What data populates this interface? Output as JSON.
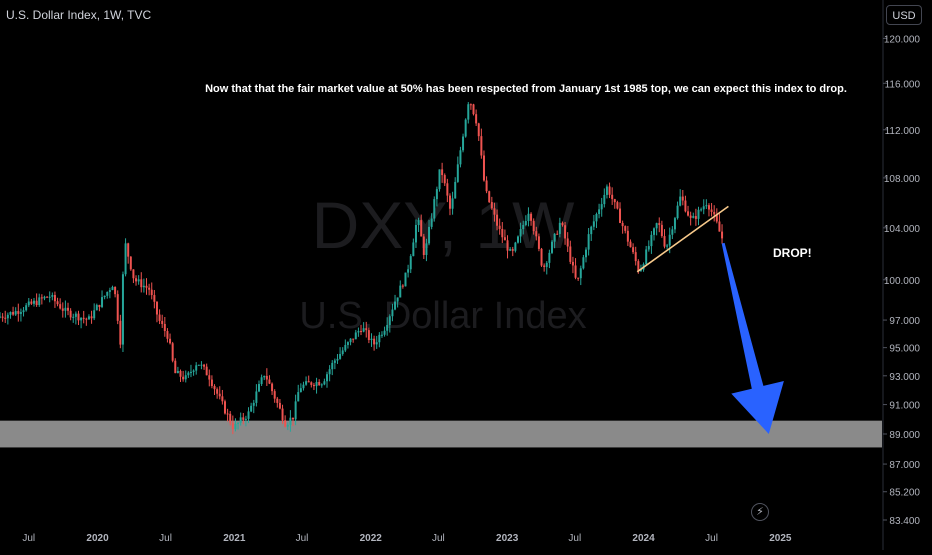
{
  "header": {
    "title": "U.S. Dollar Index, 1W, TVC",
    "currency": "USD"
  },
  "watermark": {
    "symbol": "DXY, 1W",
    "name": "U.S. Dollar Index"
  },
  "annotations": {
    "note": "Now that that the fair market value at 50% has been respected from January 1st 1985 top, we can expect this index to drop.",
    "drop_label": "DROP!",
    "bolt_icon": "lightning-icon"
  },
  "colors": {
    "up": "#26a69a",
    "down": "#ef5350",
    "zone": "#8a8a8a",
    "trendline": "#f7c98b",
    "arrow": "#2962ff",
    "background": "#000000"
  },
  "chart_data": {
    "type": "candlestick",
    "title": "U.S. Dollar Index, 1W, TVC",
    "xlabel": "",
    "ylabel": "",
    "y_scale": "log",
    "grid": false,
    "ylim": [
      83.4,
      121.5
    ],
    "xlim": [
      "2019-04-15",
      "2025-09-30"
    ],
    "y_ticks": [
      "120.000",
      "116.000",
      "112.000",
      "108.000",
      "104.000",
      "100.000",
      "97.000",
      "95.000",
      "93.000",
      "91.000",
      "89.000",
      "87.000",
      "85.200",
      "83.400"
    ],
    "x_ticks": [
      {
        "label": "Jul",
        "date": "2019-07-01"
      },
      {
        "label": "2020",
        "date": "2020-01-01"
      },
      {
        "label": "Jul",
        "date": "2020-07-01"
      },
      {
        "label": "2021",
        "date": "2021-01-01"
      },
      {
        "label": "Jul",
        "date": "2021-07-01"
      },
      {
        "label": "2022",
        "date": "2022-01-01"
      },
      {
        "label": "Jul",
        "date": "2022-07-01"
      },
      {
        "label": "2023",
        "date": "2023-01-01"
      },
      {
        "label": "Jul",
        "date": "2023-07-01"
      },
      {
        "label": "2024",
        "date": "2024-01-01"
      },
      {
        "label": "Jul",
        "date": "2024-07-01"
      },
      {
        "label": "2025",
        "date": "2025-01-01"
      }
    ],
    "price_path": [
      [
        "2019-04-15",
        97.2
      ],
      [
        "2019-06-01",
        97.6
      ],
      [
        "2019-09-01",
        98.8
      ],
      [
        "2019-10-15",
        97.6
      ],
      [
        "2019-12-15",
        97.0
      ],
      [
        "2020-02-20",
        99.8
      ],
      [
        "2020-03-09",
        95.5
      ],
      [
        "2020-03-20",
        103.0
      ],
      [
        "2020-04-15",
        100.0
      ],
      [
        "2020-05-25",
        99.3
      ],
      [
        "2020-06-20",
        97.0
      ],
      [
        "2020-07-15",
        95.8
      ],
      [
        "2020-08-01",
        93.2
      ],
      [
        "2020-09-01",
        92.8
      ],
      [
        "2020-10-01",
        94.0
      ],
      [
        "2020-11-01",
        93.0
      ],
      [
        "2020-12-01",
        91.3
      ],
      [
        "2021-01-06",
        89.4
      ],
      [
        "2021-02-15",
        90.4
      ],
      [
        "2021-03-30",
        93.2
      ],
      [
        "2021-05-25",
        89.7
      ],
      [
        "2021-06-15",
        90.2
      ],
      [
        "2021-07-01",
        92.2
      ],
      [
        "2021-08-01",
        92.5
      ],
      [
        "2021-09-01",
        92.6
      ],
      [
        "2021-10-01",
        94.0
      ],
      [
        "2021-11-15",
        95.5
      ],
      [
        "2021-12-15",
        96.5
      ],
      [
        "2022-01-15",
        95.2
      ],
      [
        "2022-02-15",
        96.5
      ],
      [
        "2022-03-15",
        98.5
      ],
      [
        "2022-04-15",
        100.5
      ],
      [
        "2022-05-13",
        104.8
      ],
      [
        "2022-06-01",
        101.8
      ],
      [
        "2022-07-14",
        108.9
      ],
      [
        "2022-08-10",
        105.2
      ],
      [
        "2022-09-28",
        114.8
      ],
      [
        "2022-10-20",
        112.5
      ],
      [
        "2022-11-10",
        107.0
      ],
      [
        "2022-12-15",
        104.0
      ],
      [
        "2023-01-20",
        101.8
      ],
      [
        "2023-03-08",
        105.5
      ],
      [
        "2023-04-14",
        100.8
      ],
      [
        "2023-05-31",
        104.5
      ],
      [
        "2023-07-14",
        99.6
      ],
      [
        "2023-08-15",
        103.5
      ],
      [
        "2023-10-03",
        107.3
      ],
      [
        "2023-11-15",
        104.0
      ],
      [
        "2023-12-28",
        100.6
      ],
      [
        "2024-02-15",
        104.5
      ],
      [
        "2024-03-08",
        102.4
      ],
      [
        "2024-04-16",
        106.5
      ],
      [
        "2024-05-15",
        104.5
      ],
      [
        "2024-06-26",
        106.1
      ],
      [
        "2024-07-25",
        104.1
      ],
      [
        "2024-08-03",
        103.2
      ]
    ],
    "zone": {
      "y_range": [
        88.1,
        89.9
      ],
      "note": "support zone"
    },
    "trendline": {
      "points": [
        [
          "2023-12-15",
          100.6
        ],
        [
          "2024-08-15",
          105.7
        ]
      ]
    },
    "projection": {
      "from": [
        "2024-08-01",
        102.8
      ],
      "to": [
        "2024-12-01",
        89.0
      ],
      "note": "blue down arrow"
    }
  }
}
